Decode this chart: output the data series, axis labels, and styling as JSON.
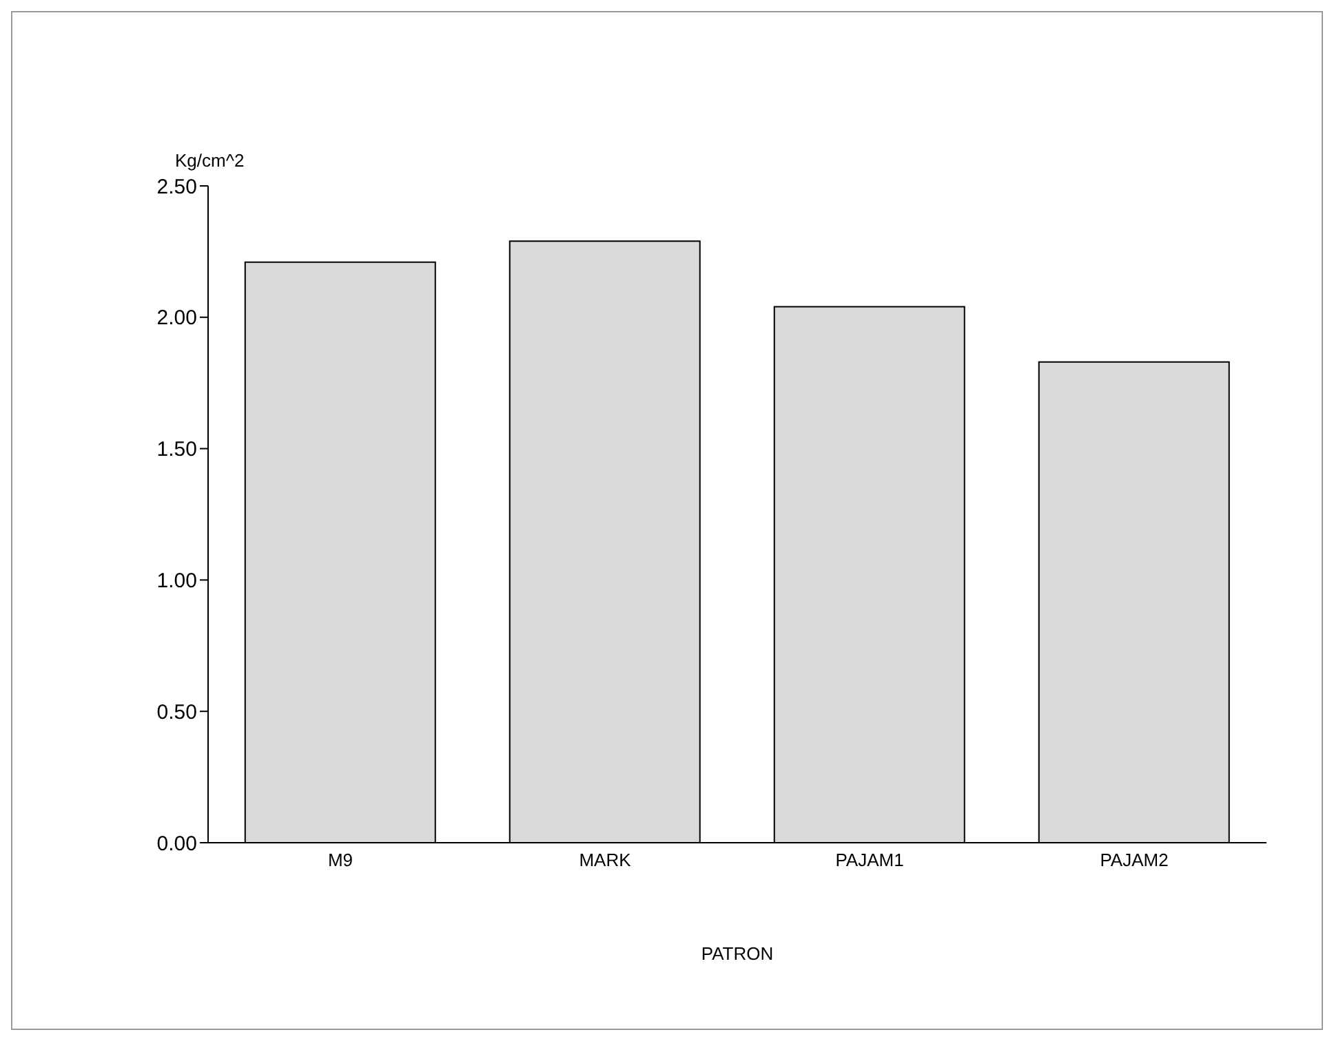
{
  "chart_data": {
    "type": "bar",
    "xlabel": "PATRON",
    "ylabel": "Kg/cm^2",
    "categories": [
      "M9",
      "MARK",
      "PAJAM1",
      "PAJAM2"
    ],
    "values": [
      2.21,
      2.29,
      2.04,
      1.83
    ],
    "color": "#d9d9d9",
    "ylim": [
      0,
      2.5
    ],
    "yticks": [
      {
        "value": 0,
        "label": "0.00"
      },
      {
        "value": 0.5,
        "label": "0.50"
      },
      {
        "value": 1,
        "label": "1.00"
      },
      {
        "value": 1.5,
        "label": "1.50"
      },
      {
        "value": 2,
        "label": "2.00"
      },
      {
        "value": 2.5,
        "label": "2.50"
      }
    ],
    "grid": false,
    "legend": false
  }
}
